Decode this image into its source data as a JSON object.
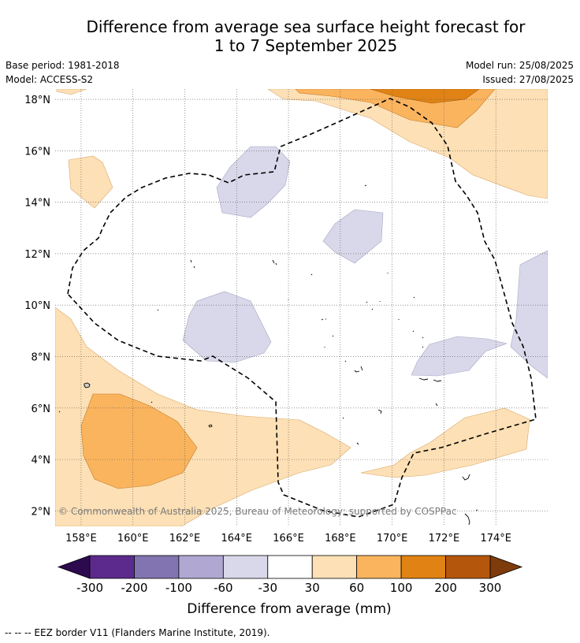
{
  "title": {
    "line1": "Difference from average sea surface height forecast for",
    "line2": "1 to 7 September 2025"
  },
  "meta": {
    "base_period": "Base period: 1981-2018",
    "model": "Model: ACCESS-S2",
    "model_run": "Model run: 25/08/2025",
    "issued": "Issued: 27/08/2025"
  },
  "map": {
    "lon_labels": [
      "158°E",
      "160°E",
      "162°E",
      "164°E",
      "166°E",
      "168°E",
      "170°E",
      "172°E",
      "174°E"
    ],
    "lat_labels": [
      "18°N",
      "16°N",
      "14°N",
      "12°N",
      "10°N",
      "8°N",
      "6°N",
      "4°N",
      "2°N"
    ],
    "lon_values": [
      158,
      160,
      162,
      164,
      166,
      168,
      170,
      172,
      174
    ],
    "lat_values": [
      18,
      16,
      14,
      12,
      10,
      8,
      6,
      4,
      2
    ],
    "lon_range": [
      157,
      176
    ],
    "lat_range": [
      1.4,
      18.4
    ],
    "gridlines": true,
    "copyright": "© Commonwealth of Australia 2025, Bureau of Meteorology; supported by COSPPac"
  },
  "colorbar": {
    "label": "Difference from average (mm)",
    "ticks": [
      "-300",
      "-200",
      "-100",
      "-60",
      "-30",
      "30",
      "60",
      "100",
      "200",
      "300"
    ],
    "colors": [
      "#5b2a8c",
      "#8274b0",
      "#b0a8d2",
      "#d8d8ea",
      "#ffffff",
      "#fde0b5",
      "#fbb45e",
      "#e08314",
      "#b4560c"
    ],
    "extend_min_color": "#2d0a4e",
    "extend_max_color": "#7e3b0b"
  },
  "legend_note": "--  --  -- EEZ border V11 (Flanders Marine Institute, 2019)."
}
